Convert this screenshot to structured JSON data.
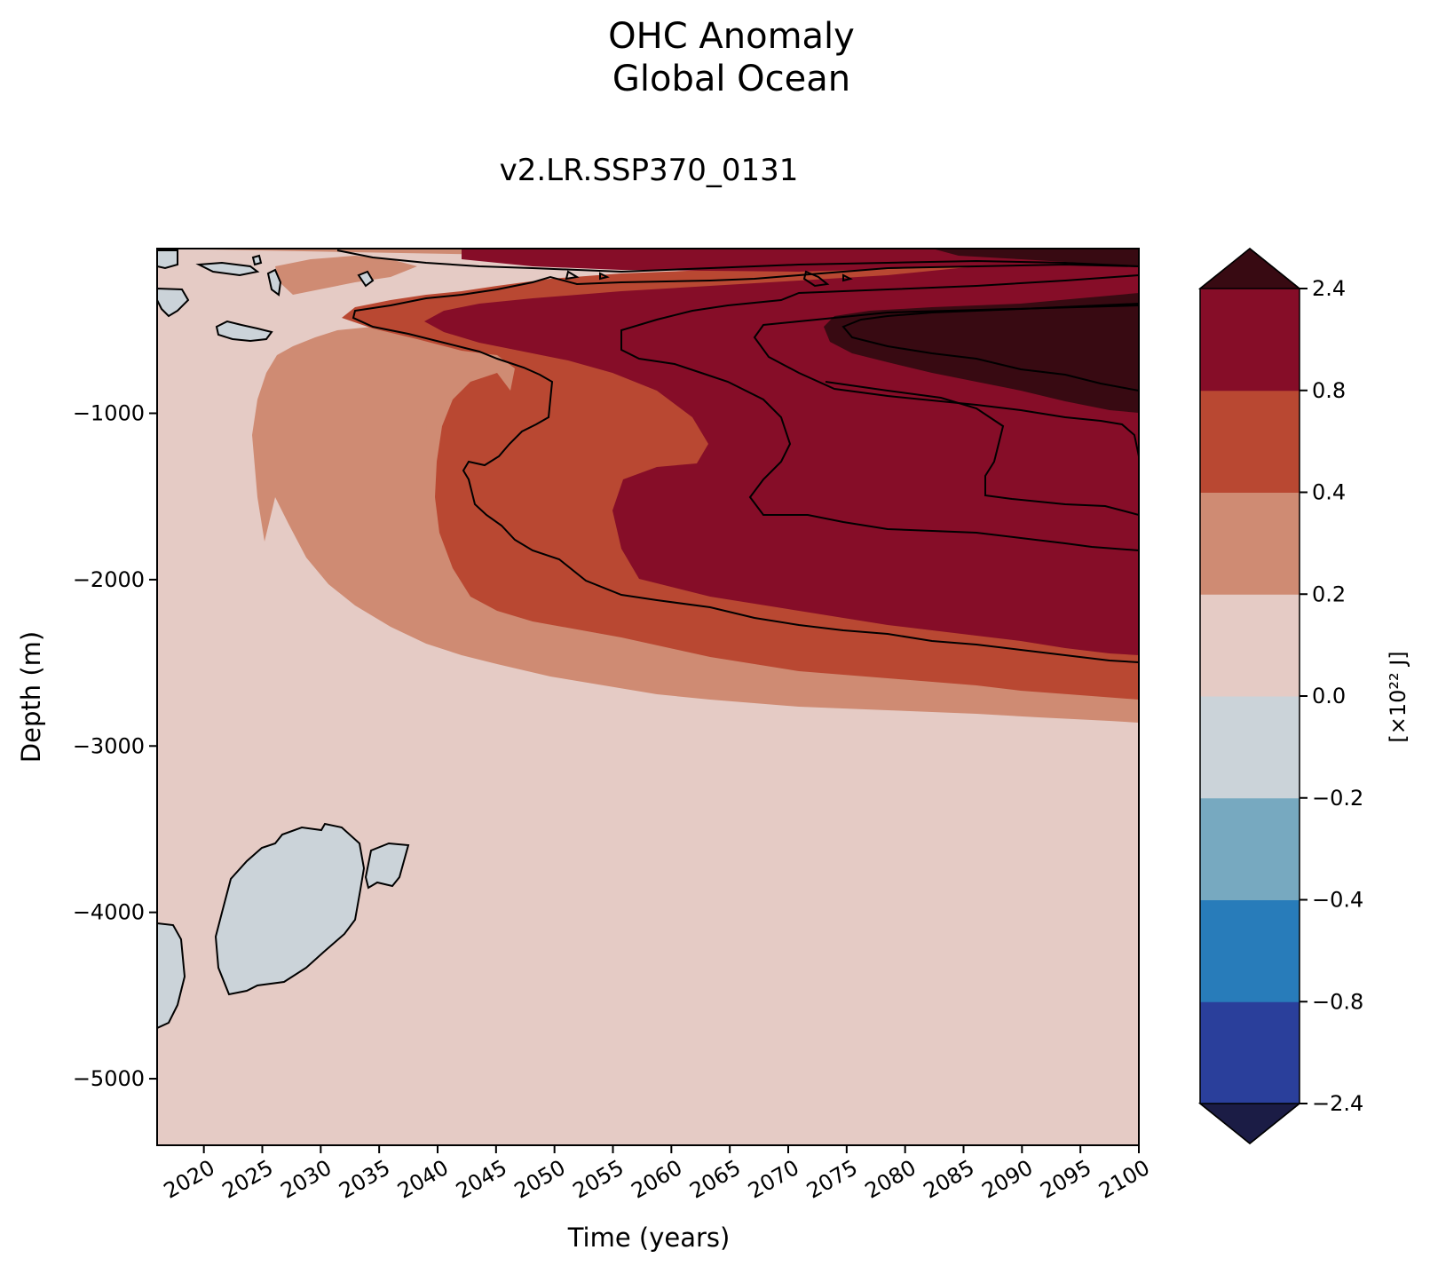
{
  "chart_data": {
    "type": "heatmap",
    "title": "OHC Anomaly",
    "title_line2": "Global Ocean",
    "subtitle": "v2.LR.SSP370_0131",
    "xlabel": "Time (years)",
    "ylabel": "Depth (m)",
    "xlim": [
      2016,
      2100
    ],
    "ylim": [
      -5400,
      -10
    ],
    "x_ticks": [
      2020,
      2025,
      2030,
      2035,
      2040,
      2045,
      2050,
      2055,
      2060,
      2065,
      2070,
      2075,
      2080,
      2085,
      2090,
      2095,
      2100
    ],
    "x_tick_labels": [
      "2020",
      "2025",
      "2030",
      "2035",
      "2040",
      "2045",
      "2050",
      "2055",
      "2060",
      "2065",
      "2070",
      "2075",
      "2080",
      "2085",
      "2090",
      "2095",
      "2100"
    ],
    "y_ticks": [
      -1000,
      -2000,
      -3000,
      -4000,
      -5000
    ],
    "y_tick_labels": [
      "−1000",
      "−2000",
      "−3000",
      "−4000",
      "−5000"
    ],
    "colorbar": {
      "label": "[×10²² J]",
      "levels": [
        -2.4,
        -0.8,
        -0.4,
        -0.2,
        0.0,
        0.2,
        0.4,
        0.8,
        2.4
      ],
      "level_labels": [
        "−2.4",
        "−0.8",
        "−0.4",
        "−0.2",
        "0.0",
        "0.2",
        "0.4",
        "0.8",
        "2.4"
      ],
      "colors": [
        "#2a3f9b",
        "#287cba",
        "#77a9c0",
        "#cbd3d9",
        "#e5cbc5",
        "#cf8b73",
        "#b94832",
        "#860d28"
      ],
      "under_color": "#1b1c45",
      "over_color": "#380a12",
      "extend": "both"
    },
    "bands": [
      {
        "level": "0.0 to 0.2",
        "color": "#e5cbc5",
        "extent": "full domain background"
      },
      {
        "level": "0.2 to 0.4",
        "color": "#cf8b73",
        "bottom_depth_at_2100": -2850
      },
      {
        "level": "0.4 to 0.8",
        "color": "#b94832",
        "bottom_depth_at_2100": -2600
      },
      {
        "level": "0.8 to 2.4",
        "color": "#860d28",
        "bottom_depth_at_2100": -2250
      },
      {
        "level": "> 2.4",
        "color": "#380a12",
        "depth_range_at_2100": [
          -10,
          -900
        ]
      },
      {
        "level": "-0.2 to 0.0",
        "color": "#cbd3d9",
        "regions": [
          "2017-2037 near -3500 to -4500 m",
          "2016-2018 near -4000 to -4700 m",
          "surface patches 2016-2025"
        ]
      }
    ]
  }
}
